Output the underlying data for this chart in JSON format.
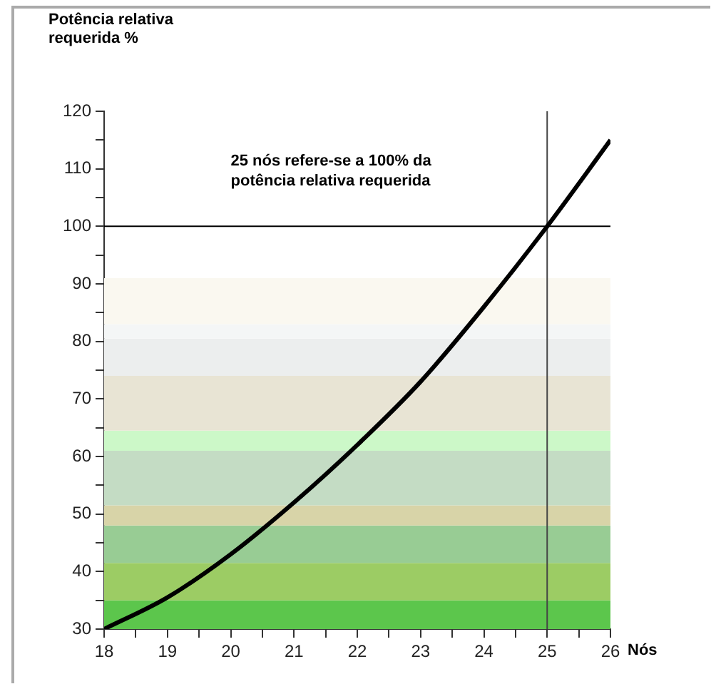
{
  "chart_data": {
    "type": "line",
    "ylabel": "Potência relativa requerida %",
    "xlabel": "Nós",
    "annotations": [
      "25 nós refere-se a 100% da potência relativa requerida"
    ],
    "x": [
      18,
      19,
      20,
      21,
      22,
      23,
      24,
      25,
      26
    ],
    "series": [
      {
        "color": "#000000",
        "values": [
          30,
          35.5,
          43,
          52,
          62,
          73,
          86,
          100,
          115
        ]
      }
    ],
    "xlim": [
      18,
      26
    ],
    "xticks": [
      18,
      {
        "value": 18.5,
        "label": null
      },
      19,
      {
        "value": 19.5,
        "label": null
      },
      20,
      {
        "value": 20.5,
        "label": null
      },
      21,
      {
        "value": 21.5,
        "label": null
      },
      22,
      {
        "value": 22.5,
        "label": null
      },
      23,
      {
        "value": 23.5,
        "label": null
      },
      24,
      {
        "value": 24.5,
        "label": null
      },
      25,
      {
        "value": 25.5,
        "label": null
      },
      26
    ],
    "ylim": [
      30,
      120
    ],
    "yticks": [
      30,
      {
        "value": 35,
        "label": null
      },
      40,
      {
        "value": 45,
        "label": null
      },
      50,
      {
        "value": 55,
        "label": null
      },
      60,
      {
        "value": 65,
        "label": null
      },
      70,
      {
        "value": 75,
        "label": null
      },
      80,
      {
        "value": 85,
        "label": null
      },
      90,
      {
        "value": 95,
        "label": null
      },
      100,
      {
        "value": 105,
        "label": null
      },
      110,
      {
        "value": 115,
        "label": null
      },
      120
    ],
    "ref_lines": [
      {
        "axis": "y",
        "value": 100,
        "color": "#000000"
      },
      {
        "axis": "x",
        "value": 25,
        "color": "#444444"
      }
    ],
    "bands": [
      {
        "axis": "y",
        "from": 30,
        "to": 35,
        "color": "#5cc64c"
      },
      {
        "axis": "y",
        "from": 35,
        "to": 41.5,
        "color": "#9ccc64"
      },
      {
        "axis": "y",
        "from": 41.5,
        "to": 48,
        "color": "#98cc94"
      },
      {
        "axis": "y",
        "from": 48,
        "to": 51.5,
        "color": "#d8d4a8"
      },
      {
        "axis": "y",
        "from": 51.5,
        "to": 61,
        "color": "#c4dcc4"
      },
      {
        "axis": "y",
        "from": 61,
        "to": 64.5,
        "color": "#ccf8c8"
      },
      {
        "axis": "y",
        "from": 64.5,
        "to": 74,
        "color": "#e8e4d4"
      },
      {
        "axis": "y",
        "from": 74,
        "to": 80.5,
        "color": "#eceeee"
      },
      {
        "axis": "y",
        "from": 80.5,
        "to": 83,
        "color": "#f4f6f6"
      },
      {
        "axis": "y",
        "from": 83,
        "to": 91,
        "color": "#faf8f0"
      }
    ],
    "grid": false,
    "legend": false,
    "marker": "none",
    "line_style": "solid"
  }
}
